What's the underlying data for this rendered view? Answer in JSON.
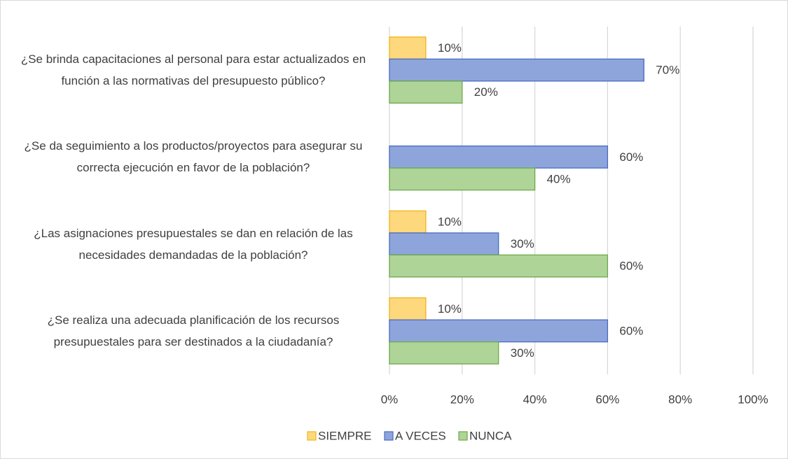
{
  "chart_data": {
    "type": "hbar",
    "categories": [
      "¿Se brinda capacitaciones al personal para estar actualizados en función a las normativas del presupuesto público?",
      "¿Se da seguimiento a los productos/proyectos para asegurar su correcta ejecución en favor de la población?",
      "¿Las asignaciones presupuestales se dan en relación de las necesidades demandadas de la población?",
      "¿Se realiza una adecuada planificación de los recursos presupuestales para ser destinados a la ciudadanía?"
    ],
    "series": [
      {
        "name": "SIEMPRE",
        "color": "#fdd87c",
        "stroke": "#f2b31c",
        "values": [
          10,
          null,
          10,
          10
        ],
        "value_labels": [
          "10%",
          null,
          "10%",
          "10%"
        ]
      },
      {
        "name": "A VECES",
        "color": "#8ea5dc",
        "stroke": "#4a6cc0",
        "values": [
          70,
          60,
          30,
          60
        ],
        "value_labels": [
          "70%",
          "60%",
          "30%",
          "60%"
        ]
      },
      {
        "name": "NUNCA",
        "color": "#aed498",
        "stroke": "#6ea94a",
        "values": [
          20,
          40,
          60,
          30
        ],
        "value_labels": [
          "20%",
          "40%",
          "60%",
          "30%"
        ]
      }
    ],
    "xlim": [
      0,
      100
    ],
    "xticks": [
      {
        "value": 0,
        "label": "0%"
      },
      {
        "value": 20,
        "label": "20%"
      },
      {
        "value": 40,
        "label": "40%"
      },
      {
        "value": 60,
        "label": "60%"
      },
      {
        "value": 80,
        "label": "80%"
      },
      {
        "value": 100,
        "label": "100%"
      }
    ],
    "grid": true,
    "legend": "bottom"
  }
}
